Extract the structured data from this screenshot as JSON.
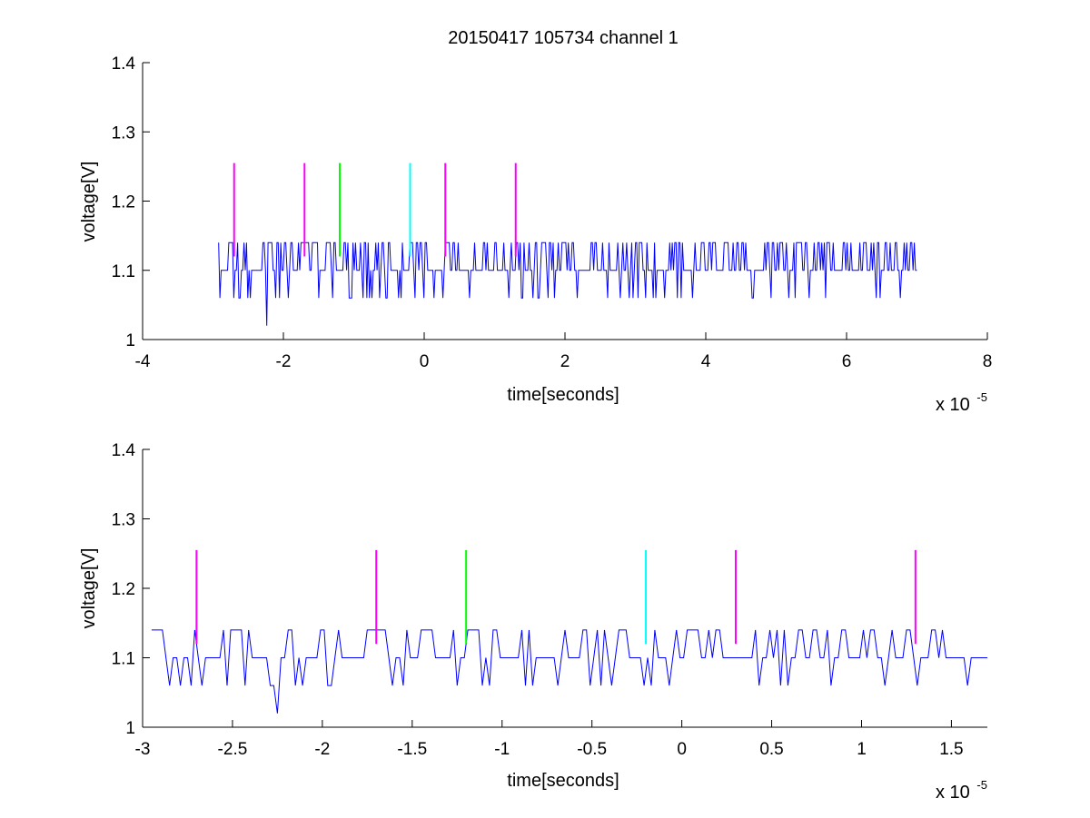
{
  "title": "20150417 105734 channel 1",
  "colors": {
    "signal": "#0000ff",
    "marker_magenta": "#ff00ff",
    "marker_green": "#00ff00",
    "marker_cyan": "#00ffff",
    "axis": "#000000"
  },
  "chart_data": [
    {
      "type": "line",
      "name": "full-window",
      "xlabel": "time[seconds]",
      "ylabel": "voltage[V]",
      "x_exponent_label": "x 10",
      "x_exponent_power": "-5",
      "xlim": [
        -4,
        8
      ],
      "ylim": [
        1,
        1.4
      ],
      "x_ticks": [
        "-4",
        "-2",
        "0",
        "2",
        "4",
        "6",
        "8"
      ],
      "x_tick_values": [
        -4,
        -2,
        0,
        2,
        4,
        6,
        8
      ],
      "y_ticks": [
        "1",
        "1.1",
        "1.2",
        "1.3",
        "1.4"
      ],
      "y_tick_values": [
        1,
        1.1,
        1.2,
        1.3,
        1.4
      ],
      "grid": false,
      "signal": {
        "x_range": [
          -2.92,
          7.0
        ],
        "baseline": 1.1,
        "levels": [
          1.02,
          1.06,
          1.1,
          1.14
        ],
        "min_point": {
          "x": -2.25,
          "y": 1.02
        }
      },
      "markers": [
        {
          "x": -2.7,
          "y_from": 1.12,
          "y_to": 1.255,
          "color": "magenta"
        },
        {
          "x": -1.7,
          "y_from": 1.12,
          "y_to": 1.255,
          "color": "magenta"
        },
        {
          "x": -1.2,
          "y_from": 1.12,
          "y_to": 1.255,
          "color": "green"
        },
        {
          "x": -0.2,
          "y_from": 1.12,
          "y_to": 1.255,
          "color": "cyan"
        },
        {
          "x": 0.3,
          "y_from": 1.12,
          "y_to": 1.255,
          "color": "magenta"
        },
        {
          "x": 1.3,
          "y_from": 1.12,
          "y_to": 1.255,
          "color": "magenta"
        }
      ]
    },
    {
      "type": "line",
      "name": "zoomed-window",
      "xlabel": "time[seconds]",
      "ylabel": "voltage[V]",
      "x_exponent_label": "x 10",
      "x_exponent_power": "-5",
      "xlim": [
        -3.0,
        1.7
      ],
      "ylim": [
        1,
        1.4
      ],
      "x_ticks": [
        "-3",
        "-2.5",
        "-2",
        "-1.5",
        "-1",
        "-0.5",
        "0",
        "0.5",
        "1",
        "1.5"
      ],
      "x_tick_values": [
        -3,
        -2.5,
        -2,
        -1.5,
        -1,
        -0.5,
        0,
        0.5,
        1,
        1.5
      ],
      "y_ticks": [
        "1",
        "1.1",
        "1.2",
        "1.3",
        "1.4"
      ],
      "y_tick_values": [
        1,
        1.1,
        1.2,
        1.3,
        1.4
      ],
      "grid": false,
      "signal": {
        "x_range": [
          -2.95,
          1.7
        ],
        "baseline": 1.1,
        "levels": [
          1.02,
          1.06,
          1.1,
          1.14
        ],
        "min_point": {
          "x": -2.25,
          "y": 1.02
        }
      },
      "markers": [
        {
          "x": -2.7,
          "y_from": 1.12,
          "y_to": 1.255,
          "color": "magenta"
        },
        {
          "x": -1.7,
          "y_from": 1.12,
          "y_to": 1.255,
          "color": "magenta"
        },
        {
          "x": -1.2,
          "y_from": 1.12,
          "y_to": 1.255,
          "color": "green"
        },
        {
          "x": -0.2,
          "y_from": 1.12,
          "y_to": 1.255,
          "color": "cyan"
        },
        {
          "x": 0.3,
          "y_from": 1.12,
          "y_to": 1.255,
          "color": "magenta"
        },
        {
          "x": 1.3,
          "y_from": 1.12,
          "y_to": 1.255,
          "color": "magenta"
        }
      ]
    }
  ]
}
